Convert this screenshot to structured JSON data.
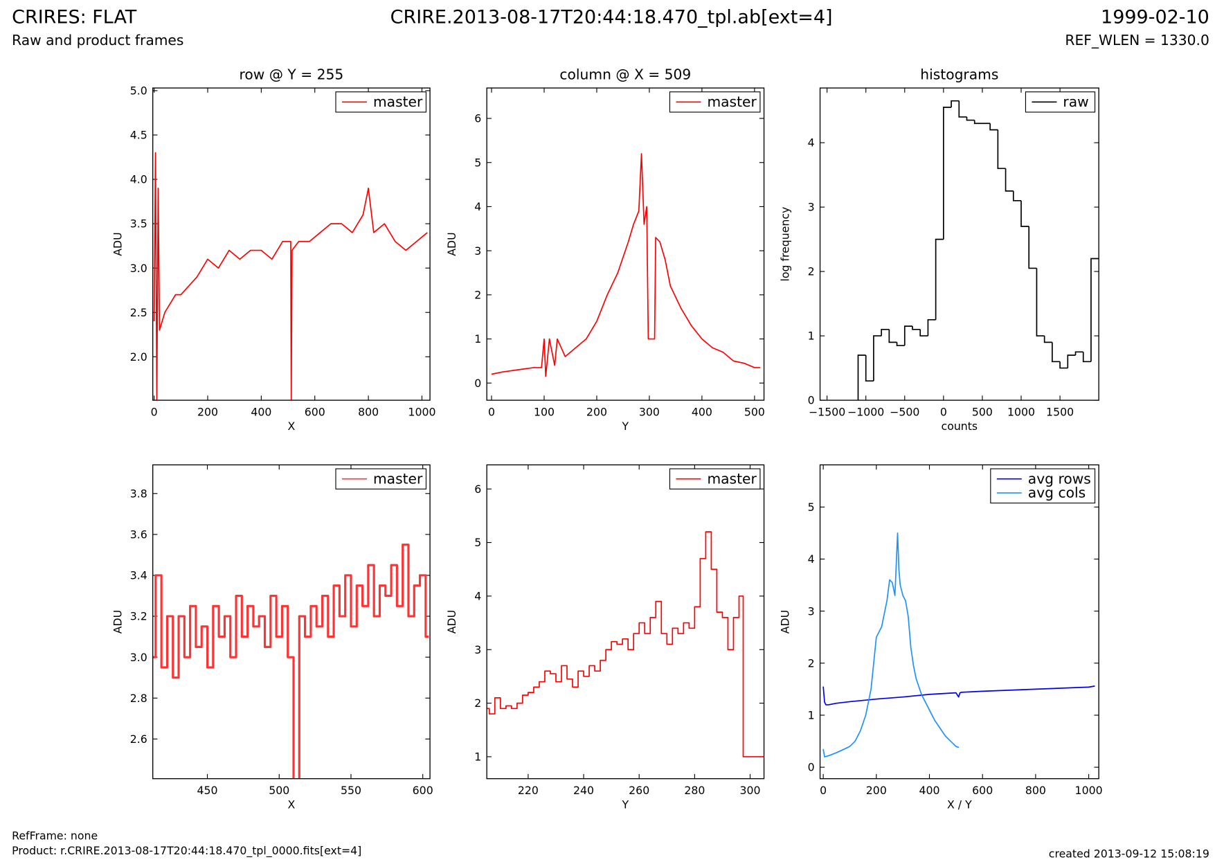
{
  "header": {
    "title": "CRIRES: FLAT",
    "subtitle": "Raw and product frames",
    "file": "CRIRE.2013-08-17T20:44:18.470_tpl.ab[ext=4]",
    "date": "1999-02-10",
    "ref_wlen": "REF_WLEN = 1330.0"
  },
  "footer": {
    "ref_frame": "RefFrame: none",
    "product": "Product: r.CRIRE.2013-08-17T20:44:18.470_tpl_0000.fits[ext=4]",
    "created": "created 2013-09-12 15:08:19"
  },
  "chart_data": [
    {
      "type": "line",
      "title": "row @ Y = 255",
      "x_label": "X",
      "y_label": "ADU",
      "legend": "upper right",
      "x": [
        0,
        5,
        10,
        15,
        20,
        40,
        60,
        80,
        100,
        130,
        160,
        200,
        240,
        280,
        320,
        360,
        400,
        440,
        480,
        510,
        512,
        515,
        540,
        580,
        620,
        660,
        700,
        740,
        780,
        800,
        820,
        860,
        900,
        940,
        980,
        1020
      ],
      "series": [
        {
          "name": "master",
          "color": "#ff0000",
          "values": [
            2.4,
            4.3,
            1.5,
            3.9,
            2.3,
            2.5,
            2.6,
            2.7,
            2.7,
            2.8,
            2.9,
            3.1,
            3.0,
            3.2,
            3.1,
            3.2,
            3.2,
            3.1,
            3.3,
            3.3,
            1.5,
            3.2,
            3.3,
            3.3,
            3.4,
            3.5,
            3.5,
            3.4,
            3.6,
            3.9,
            3.4,
            3.5,
            3.3,
            3.2,
            3.3,
            3.4
          ]
        }
      ],
      "xlim": [
        -5,
        1030
      ],
      "ylim": [
        1.51,
        5.03
      ],
      "xticks": [
        0,
        200,
        400,
        600,
        800,
        1000
      ],
      "yticks": [
        {
          "value": 2,
          "label": "2.0"
        },
        2.5,
        {
          "value": 3,
          "label": "3.0"
        },
        3.5,
        {
          "value": 4,
          "label": "4.0"
        },
        4.5,
        {
          "value": 5,
          "label": "5.0"
        }
      ]
    },
    {
      "type": "line",
      "title": "column @ X = 509",
      "x_label": "Y",
      "y_label": "ADU",
      "legend": "upper right",
      "x": [
        0,
        20,
        50,
        80,
        95,
        100,
        103,
        110,
        120,
        125,
        140,
        160,
        180,
        200,
        220,
        240,
        260,
        270,
        280,
        285,
        290,
        295,
        298,
        310,
        312,
        320,
        330,
        340,
        360,
        380,
        400,
        420,
        440,
        460,
        480,
        500,
        511
      ],
      "series": [
        {
          "name": "master",
          "color": "#ff0000",
          "values": [
            0.2,
            0.25,
            0.3,
            0.35,
            0.35,
            1.0,
            0.15,
            1.0,
            0.4,
            1.0,
            0.6,
            0.8,
            1.0,
            1.4,
            2.0,
            2.5,
            3.2,
            3.6,
            3.9,
            5.2,
            3.6,
            4.0,
            1.0,
            1.0,
            3.3,
            3.2,
            2.8,
            2.2,
            1.7,
            1.3,
            1.0,
            0.8,
            0.7,
            0.5,
            0.45,
            0.35,
            0.35
          ]
        }
      ],
      "xlim": [
        -9,
        518
      ],
      "ylim": [
        -0.39,
        6.69
      ],
      "xticks": [
        0,
        100,
        200,
        300,
        400,
        500
      ],
      "yticks": [
        0,
        1,
        2,
        3,
        4,
        5,
        6
      ]
    },
    {
      "type": "histogram",
      "title": "histograms",
      "x_label": "counts",
      "y_label": "log frequency",
      "legend": "upper right",
      "bins": [
        -1100,
        -1000,
        -900,
        -800,
        -700,
        -600,
        -500,
        -400,
        -300,
        -200,
        -100,
        0,
        100,
        200,
        300,
        400,
        500,
        600,
        700,
        800,
        900,
        1000,
        1100,
        1200,
        1300,
        1400,
        1500,
        1600,
        1700,
        1800,
        1900,
        2000
      ],
      "series": [
        {
          "name": "raw",
          "color": "#000000",
          "values": [
            0.7,
            0.3,
            1.0,
            1.1,
            0.9,
            0.85,
            1.15,
            1.1,
            1.0,
            1.25,
            2.5,
            4.55,
            4.65,
            4.4,
            4.35,
            4.3,
            4.3,
            4.2,
            3.6,
            3.25,
            3.1,
            2.7,
            2.05,
            1.0,
            0.9,
            0.6,
            0.5,
            0.7,
            0.75,
            0.6,
            2.2
          ]
        }
      ],
      "xlim": [
        -1590,
        2000
      ],
      "ylim": [
        0,
        4.85
      ],
      "xticks": [
        {
          "value": -1500,
          "label": "−1500"
        },
        {
          "value": -1000,
          "label": "−1000"
        },
        {
          "value": -500,
          "label": "−500"
        },
        0,
        500,
        1000,
        1500
      ],
      "yticks": [
        0,
        1,
        2,
        3,
        4
      ]
    },
    {
      "type": "line",
      "drawstyle": "steps-mid",
      "x_label": "X",
      "y_label": "ADU",
      "legend": "upper right",
      "x": [
        412,
        416,
        420,
        424,
        428,
        432,
        436,
        440,
        444,
        448,
        452,
        456,
        460,
        464,
        468,
        472,
        476,
        480,
        484,
        488,
        492,
        496,
        500,
        504,
        508,
        512,
        516,
        520,
        524,
        528,
        532,
        536,
        540,
        544,
        548,
        552,
        556,
        560,
        564,
        568,
        572,
        576,
        580,
        584,
        588,
        592,
        596,
        600,
        604
      ],
      "series": [
        {
          "name": "master",
          "color": "#ff3333",
          "values": [
            3.0,
            3.4,
            2.95,
            3.2,
            2.9,
            3.2,
            3.0,
            3.25,
            3.05,
            3.15,
            2.95,
            3.25,
            3.1,
            3.2,
            3.0,
            3.3,
            3.1,
            3.25,
            3.15,
            3.2,
            3.05,
            3.3,
            3.1,
            3.25,
            3.0,
            2.4,
            3.2,
            3.1,
            3.25,
            3.15,
            3.3,
            3.1,
            3.35,
            3.2,
            3.4,
            3.15,
            3.35,
            3.25,
            3.45,
            3.2,
            3.35,
            3.3,
            3.45,
            3.25,
            3.55,
            3.2,
            3.35,
            3.4,
            3.1
          ]
        }
      ],
      "xlim": [
        412,
        605
      ],
      "ylim": [
        2.406,
        3.94
      ],
      "xticks": [
        450,
        500,
        550,
        600
      ],
      "yticks": [
        2.6,
        2.8,
        {
          "value": 3,
          "label": "3.0"
        },
        3.2,
        3.4,
        3.6,
        3.8
      ]
    },
    {
      "type": "line",
      "drawstyle": "steps-mid",
      "x_label": "Y",
      "y_label": "ADU",
      "legend": "upper right",
      "x": [
        205,
        207,
        209,
        211,
        213,
        215,
        217,
        219,
        221,
        223,
        225,
        227,
        229,
        231,
        233,
        235,
        237,
        239,
        241,
        243,
        245,
        247,
        249,
        251,
        253,
        255,
        257,
        259,
        261,
        263,
        265,
        267,
        269,
        271,
        273,
        275,
        277,
        279,
        281,
        283,
        285,
        287,
        289,
        291,
        293,
        295,
        297,
        298,
        305
      ],
      "series": [
        {
          "name": "master",
          "color": "#ff0000",
          "values": [
            1.9,
            1.8,
            2.1,
            1.9,
            1.95,
            1.9,
            2.0,
            2.15,
            2.2,
            2.3,
            2.4,
            2.6,
            2.55,
            2.4,
            2.7,
            2.45,
            2.3,
            2.6,
            2.5,
            2.7,
            2.6,
            2.8,
            3.0,
            3.15,
            3.1,
            3.2,
            3.0,
            3.3,
            3.5,
            3.3,
            3.6,
            3.9,
            3.3,
            3.1,
            3.4,
            3.3,
            3.5,
            3.4,
            3.8,
            4.7,
            5.2,
            4.5,
            3.7,
            3.6,
            3.0,
            3.6,
            4.0,
            1.0,
            1.0
          ]
        }
      ],
      "xlim": [
        205.1,
        305
      ],
      "ylim": [
        0.59,
        6.45
      ],
      "xticks": [
        220,
        240,
        260,
        280,
        300
      ],
      "yticks": [
        1,
        2,
        3,
        4,
        5,
        6
      ]
    },
    {
      "type": "line",
      "x_label": "X / Y",
      "y_label": "ADU",
      "legend": "upper right",
      "series": [
        {
          "name": "avg rows",
          "color": "#0000ee",
          "x": [
            0,
            5,
            10,
            20,
            50,
            100,
            200,
            300,
            400,
            500,
            510,
            515,
            520,
            600,
            700,
            800,
            900,
            1000,
            1023
          ],
          "values": [
            1.55,
            1.25,
            1.2,
            1.2,
            1.23,
            1.26,
            1.31,
            1.35,
            1.4,
            1.43,
            1.35,
            1.43,
            1.44,
            1.46,
            1.48,
            1.5,
            1.52,
            1.54,
            1.56
          ]
        },
        {
          "name": "avg cols",
          "color": "#1e90ff",
          "x": [
            0,
            5,
            20,
            50,
            80,
            100,
            120,
            140,
            160,
            180,
            190,
            200,
            210,
            220,
            240,
            250,
            260,
            270,
            280,
            285,
            290,
            300,
            310,
            320,
            330,
            340,
            350,
            370,
            400,
            420,
            440,
            460,
            480,
            500,
            511
          ],
          "values": [
            0.35,
            0.2,
            0.22,
            0.28,
            0.35,
            0.4,
            0.5,
            0.7,
            1.0,
            1.5,
            2.0,
            2.5,
            2.6,
            2.7,
            3.2,
            3.6,
            3.55,
            3.3,
            4.5,
            3.8,
            3.5,
            3.3,
            3.2,
            2.9,
            2.3,
            1.95,
            1.7,
            1.4,
            1.1,
            0.9,
            0.75,
            0.6,
            0.5,
            0.4,
            0.38
          ]
        }
      ],
      "xlim": [
        -12,
        1038
      ],
      "ylim": [
        -0.22,
        5.81
      ],
      "xticks": [
        0,
        200,
        400,
        600,
        800,
        1000
      ],
      "yticks": [
        0,
        1,
        2,
        3,
        4,
        5
      ]
    }
  ]
}
